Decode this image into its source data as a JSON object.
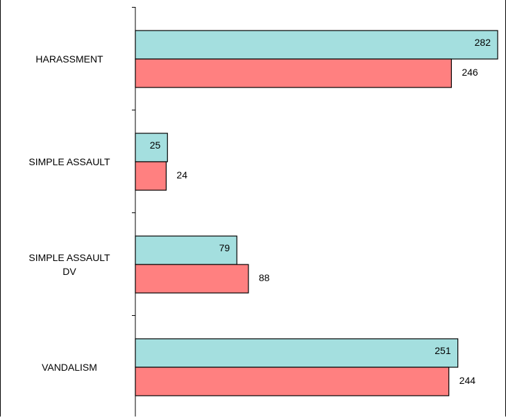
{
  "chart_data": {
    "type": "bar",
    "orientation": "horizontal",
    "categories": [
      "HARASSMENT",
      "SIMPLE ASSAULT",
      "SIMPLE ASSAULT DV",
      "VANDALISM"
    ],
    "category_lines": [
      [
        "HARASSMENT"
      ],
      [
        "SIMPLE ASSAULT"
      ],
      [
        "SIMPLE ASSAULT",
        "DV"
      ],
      [
        "VANDALISM"
      ]
    ],
    "series": [
      {
        "values": [
          282,
          25,
          79,
          251
        ]
      },
      {
        "values": [
          246,
          24,
          88,
          244
        ]
      }
    ],
    "colors": {
      "series0": "#a4dfdf",
      "series1": "#ff8080"
    },
    "xlim": [
      0,
      300
    ],
    "grid": false,
    "legend": "none",
    "title": "",
    "xlabel": "",
    "ylabel": ""
  }
}
